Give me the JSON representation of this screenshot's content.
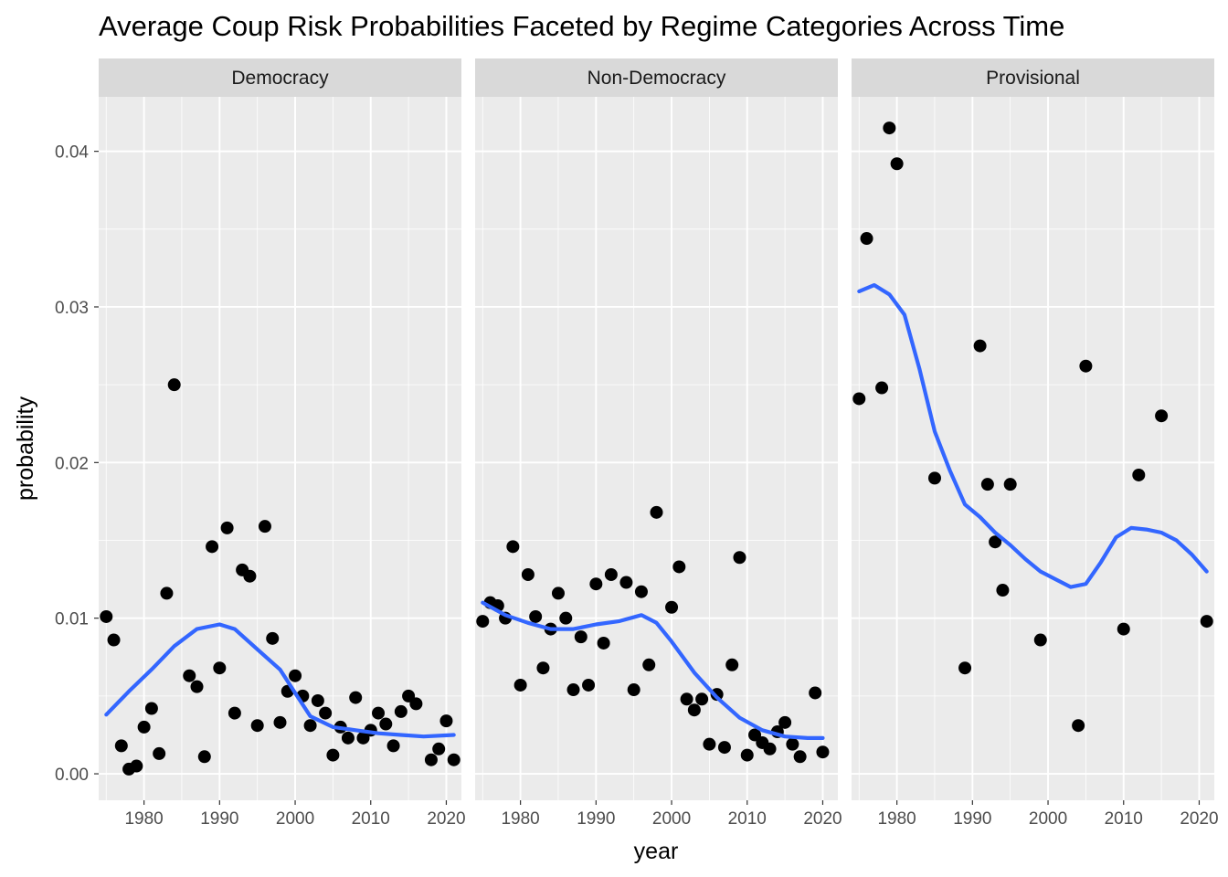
{
  "chart_data": {
    "type": "scatter",
    "title": "Average Coup Risk Probabilities Faceted by Regime Categories Across Time",
    "xlabel": "year",
    "ylabel": "probability",
    "xlim": [
      1974,
      2022
    ],
    "ylim": [
      -0.0017,
      0.0435
    ],
    "x_ticks": [
      1980,
      1990,
      2000,
      2010,
      2020
    ],
    "y_ticks": [
      0.0,
      0.01,
      0.02,
      0.03,
      0.04
    ],
    "y_tick_labels": [
      "0.00",
      "0.01",
      "0.02",
      "0.03",
      "0.04"
    ],
    "grid": true,
    "point_color": "#000000",
    "smooth_color": "#3366ff",
    "panel_background": "#ebebeb",
    "strip_background": "#d9d9d9",
    "facets": [
      {
        "label": "Democracy",
        "points": [
          [
            1975,
            0.0101
          ],
          [
            1976,
            0.0086
          ],
          [
            1977,
            0.0018
          ],
          [
            1978,
            0.0003
          ],
          [
            1979,
            0.0005
          ],
          [
            1980,
            0.003
          ],
          [
            1981,
            0.0042
          ],
          [
            1982,
            0.0013
          ],
          [
            1983,
            0.0116
          ],
          [
            1984,
            0.025
          ],
          [
            1986,
            0.0063
          ],
          [
            1987,
            0.0056
          ],
          [
            1988,
            0.0011
          ],
          [
            1989,
            0.0146
          ],
          [
            1990,
            0.0068
          ],
          [
            1991,
            0.0158
          ],
          [
            1992,
            0.0039
          ],
          [
            1993,
            0.0131
          ],
          [
            1994,
            0.0127
          ],
          [
            1995,
            0.0031
          ],
          [
            1996,
            0.0159
          ],
          [
            1997,
            0.0087
          ],
          [
            1998,
            0.0033
          ],
          [
            1999,
            0.0053
          ],
          [
            2000,
            0.0063
          ],
          [
            2001,
            0.005
          ],
          [
            2002,
            0.0031
          ],
          [
            2003,
            0.0047
          ],
          [
            2004,
            0.0039
          ],
          [
            2005,
            0.0012
          ],
          [
            2006,
            0.003
          ],
          [
            2007,
            0.0023
          ],
          [
            2008,
            0.0049
          ],
          [
            2009,
            0.0023
          ],
          [
            2010,
            0.0028
          ],
          [
            2011,
            0.0039
          ],
          [
            2012,
            0.0032
          ],
          [
            2013,
            0.0018
          ],
          [
            2014,
            0.004
          ],
          [
            2015,
            0.005
          ],
          [
            2016,
            0.0045
          ],
          [
            2018,
            0.0009
          ],
          [
            2019,
            0.0016
          ],
          [
            2020,
            0.0034
          ],
          [
            2021,
            0.0009
          ]
        ],
        "smooth": [
          [
            1975,
            0.0038
          ],
          [
            1978,
            0.0053
          ],
          [
            1981,
            0.0067
          ],
          [
            1984,
            0.0082
          ],
          [
            1987,
            0.0093
          ],
          [
            1990,
            0.0096
          ],
          [
            1992,
            0.0093
          ],
          [
            1995,
            0.008
          ],
          [
            1998,
            0.0067
          ],
          [
            2000,
            0.0052
          ],
          [
            2002,
            0.0037
          ],
          [
            2005,
            0.003
          ],
          [
            2008,
            0.0028
          ],
          [
            2011,
            0.0026
          ],
          [
            2014,
            0.0025
          ],
          [
            2017,
            0.0024
          ],
          [
            2021,
            0.0025
          ]
        ]
      },
      {
        "label": "Non-Democracy",
        "points": [
          [
            1975,
            0.0098
          ],
          [
            1976,
            0.011
          ],
          [
            1977,
            0.0108
          ],
          [
            1978,
            0.01
          ],
          [
            1979,
            0.0146
          ],
          [
            1980,
            0.0057
          ],
          [
            1981,
            0.0128
          ],
          [
            1982,
            0.0101
          ],
          [
            1983,
            0.0068
          ],
          [
            1984,
            0.0093
          ],
          [
            1985,
            0.0116
          ],
          [
            1986,
            0.01
          ],
          [
            1987,
            0.0054
          ],
          [
            1988,
            0.0088
          ],
          [
            1989,
            0.0057
          ],
          [
            1990,
            0.0122
          ],
          [
            1991,
            0.0084
          ],
          [
            1992,
            0.0128
          ],
          [
            1994,
            0.0123
          ],
          [
            1995,
            0.0054
          ],
          [
            1996,
            0.0117
          ],
          [
            1997,
            0.007
          ],
          [
            1998,
            0.0168
          ],
          [
            2000,
            0.0107
          ],
          [
            2001,
            0.0133
          ],
          [
            2002,
            0.0048
          ],
          [
            2003,
            0.0041
          ],
          [
            2004,
            0.0048
          ],
          [
            2005,
            0.0019
          ],
          [
            2006,
            0.0051
          ],
          [
            2007,
            0.0017
          ],
          [
            2008,
            0.007
          ],
          [
            2009,
            0.0139
          ],
          [
            2010,
            0.0012
          ],
          [
            2011,
            0.0025
          ],
          [
            2012,
            0.002
          ],
          [
            2013,
            0.0016
          ],
          [
            2014,
            0.0027
          ],
          [
            2015,
            0.0033
          ],
          [
            2016,
            0.0019
          ],
          [
            2017,
            0.0011
          ],
          [
            2019,
            0.0052
          ],
          [
            2020,
            0.0014
          ]
        ],
        "smooth": [
          [
            1975,
            0.011
          ],
          [
            1978,
            0.0102
          ],
          [
            1981,
            0.0097
          ],
          [
            1984,
            0.0093
          ],
          [
            1987,
            0.0093
          ],
          [
            1990,
            0.0096
          ],
          [
            1993,
            0.0098
          ],
          [
            1996,
            0.0102
          ],
          [
            1998,
            0.0097
          ],
          [
            2000,
            0.0085
          ],
          [
            2003,
            0.0065
          ],
          [
            2006,
            0.0049
          ],
          [
            2009,
            0.0036
          ],
          [
            2012,
            0.0028
          ],
          [
            2015,
            0.0024
          ],
          [
            2018,
            0.0023
          ],
          [
            2020,
            0.0023
          ]
        ]
      },
      {
        "label": "Provisional",
        "points": [
          [
            1975,
            0.0241
          ],
          [
            1976,
            0.0344
          ],
          [
            1978,
            0.0248
          ],
          [
            1979,
            0.0415
          ],
          [
            1980,
            0.0392
          ],
          [
            1985,
            0.019
          ],
          [
            1989,
            0.0068
          ],
          [
            1991,
            0.0275
          ],
          [
            1992,
            0.0186
          ],
          [
            1993,
            0.0149
          ],
          [
            1994,
            0.0118
          ],
          [
            1995,
            0.0186
          ],
          [
            1999,
            0.0086
          ],
          [
            2004,
            0.0031
          ],
          [
            2005,
            0.0262
          ],
          [
            2010,
            0.0093
          ],
          [
            2012,
            0.0192
          ],
          [
            2015,
            0.023
          ],
          [
            2021,
            0.0098
          ]
        ],
        "smooth": [
          [
            1975,
            0.031
          ],
          [
            1977,
            0.0314
          ],
          [
            1979,
            0.0308
          ],
          [
            1981,
            0.0295
          ],
          [
            1983,
            0.026
          ],
          [
            1985,
            0.022
          ],
          [
            1987,
            0.0195
          ],
          [
            1989,
            0.0173
          ],
          [
            1991,
            0.0165
          ],
          [
            1993,
            0.0155
          ],
          [
            1995,
            0.0147
          ],
          [
            1997,
            0.0138
          ],
          [
            1999,
            0.013
          ],
          [
            2001,
            0.0125
          ],
          [
            2003,
            0.012
          ],
          [
            2005,
            0.0122
          ],
          [
            2007,
            0.0136
          ],
          [
            2009,
            0.0152
          ],
          [
            2011,
            0.0158
          ],
          [
            2013,
            0.0157
          ],
          [
            2015,
            0.0155
          ],
          [
            2017,
            0.015
          ],
          [
            2019,
            0.0141
          ],
          [
            2021,
            0.013
          ]
        ]
      }
    ]
  }
}
